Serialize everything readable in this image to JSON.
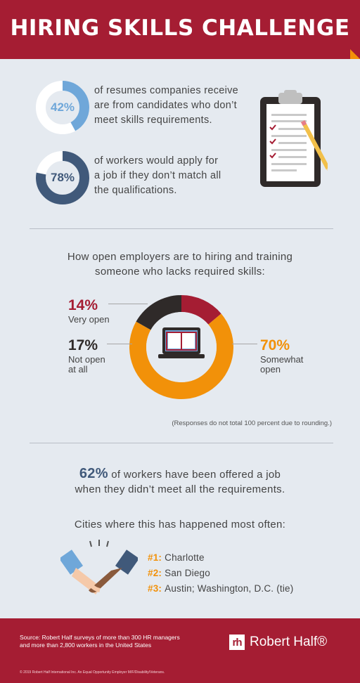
{
  "header": {
    "title": "HIRING SKILLS CHALLENGE"
  },
  "stats": [
    {
      "value": "42%",
      "fraction": 0.42,
      "line1": "of resumes companies receive",
      "line2": "are from candidates who don’t",
      "line3": "meet skills requirements."
    },
    {
      "value": "78%",
      "fraction": 0.78,
      "line1": "of workers would apply for",
      "line2": "a job if they don’t match all",
      "line3": "the qualifications."
    }
  ],
  "openness": {
    "heading_line1": "How open employers are to hiring and training",
    "heading_line2": "someone who lacks required skills:",
    "very_open": {
      "value": "14%",
      "label": "Very open"
    },
    "not_open": {
      "value": "17%",
      "label_line1": "Not open",
      "label_line2": "at all"
    },
    "somewhat": {
      "value": "70%",
      "label_line1": "Somewhat",
      "label_line2": "open"
    },
    "note": "(Responses do not total 100 percent due to rounding.)"
  },
  "offered": {
    "value": "62%",
    "line1_rest": " of workers have been offered a job",
    "line2": "when they didn’t meet all the requirements."
  },
  "cities": {
    "heading": "Cities where this has happened most often:",
    "items": [
      {
        "rank": "#1:",
        "name": "Charlotte"
      },
      {
        "rank": "#2:",
        "name": "San Diego"
      },
      {
        "rank": "#3:",
        "name": "Austin; Washington, D.C. (tie)"
      }
    ]
  },
  "footer": {
    "source_line1": "Source: Robert Half surveys of more than 300 HR managers",
    "source_line2": "and more than 2,800 workers in the United States",
    "copyright": "© 2019 Robert Half International Inc. An Equal Opportunity Employer M/F/Disability/Veterans.",
    "brand_mark": "rh",
    "brand_name": "Robert Half®"
  },
  "chart_data": {
    "type": "pie",
    "categories": [
      "Very open",
      "Not open at all",
      "Somewhat open"
    ],
    "values": [
      14,
      17,
      70
    ]
  },
  "colors": {
    "red": "#a51d33",
    "orange": "#f29109",
    "navy": "#40597a",
    "light_blue": "#6fa7d9",
    "dark": "#2f2a29"
  }
}
